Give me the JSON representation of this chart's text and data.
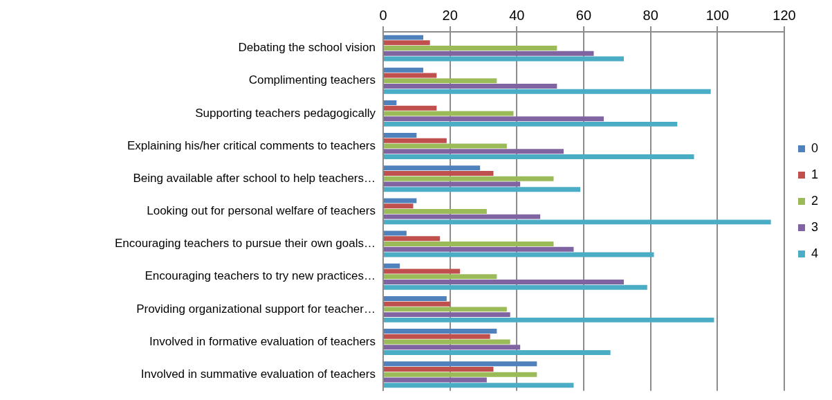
{
  "chart_data": {
    "type": "bar",
    "orientation": "horizontal",
    "categories": [
      "Debating the school vision",
      "Complimenting teachers",
      "Supporting teachers pedagogically",
      "Explaining his/her critical comments to teachers",
      "Being available after school to help teachers…",
      "Looking out for personal welfare of teachers",
      "Encouraging teachers to pursue their own goals…",
      "Encouraging teachers to try new practices…",
      "Providing organizational support for teacher…",
      "Involved in formative evaluation of teachers",
      "Involved in summative evaluation of teachers"
    ],
    "series": [
      {
        "name": "0",
        "color": "#4f81bd",
        "values": [
          12,
          12,
          4,
          10,
          29,
          10,
          7,
          5,
          19,
          34,
          46
        ]
      },
      {
        "name": "1",
        "color": "#c0504d",
        "values": [
          14,
          16,
          16,
          19,
          33,
          9,
          17,
          23,
          20,
          32,
          33
        ]
      },
      {
        "name": "2",
        "color": "#9bbb59",
        "values": [
          52,
          34,
          39,
          37,
          51,
          31,
          51,
          34,
          37,
          38,
          46
        ]
      },
      {
        "name": "3",
        "color": "#8064a2",
        "values": [
          63,
          52,
          66,
          54,
          41,
          47,
          57,
          72,
          38,
          41,
          31
        ]
      },
      {
        "name": "4",
        "color": "#4bacc6",
        "values": [
          72,
          98,
          88,
          93,
          59,
          116,
          81,
          79,
          99,
          68,
          57
        ]
      }
    ],
    "xlim": [
      0,
      120
    ],
    "xticks": [
      0,
      20,
      40,
      60,
      80,
      100,
      120
    ],
    "grid": "x",
    "legend": "right"
  }
}
